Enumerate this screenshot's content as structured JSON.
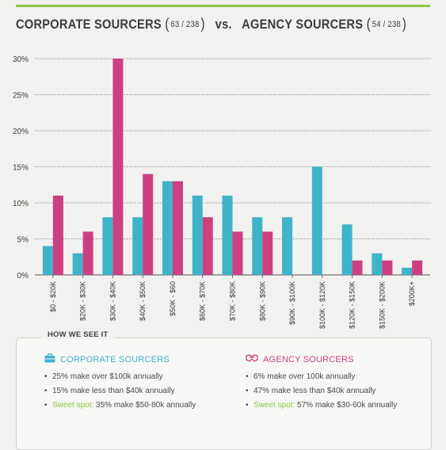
{
  "header": {
    "corp_label": "CORPORATE SOURCERS",
    "corp_count": "63 / 238",
    "vs": "vs.",
    "agency_label": "AGENCY SOURCERS",
    "agency_count": "54 / 238"
  },
  "colors": {
    "corporate": "#3fb3c8",
    "agency": "#cc4082",
    "accent": "#8cc63f",
    "grid": "#8a8a8a"
  },
  "chart_data": {
    "type": "bar",
    "categories": [
      "$0 - $20K",
      "$20K - $30K",
      "$30K - $40K",
      "$40K - $50K",
      "$50K - $60",
      "$60K - $70K",
      "$70K - $80K",
      "$80K - $90K",
      "$90K - $100K",
      "$100K - $120K",
      "$120K - $150K",
      "$150K - $200K",
      "$200K+"
    ],
    "series": [
      {
        "name": "CORPORATE SOURCERS",
        "values": [
          4,
          3,
          8,
          8,
          13,
          11,
          11,
          8,
          8,
          15,
          7,
          3,
          1
        ]
      },
      {
        "name": "AGENCY SOURCERS",
        "values": [
          11,
          6,
          30,
          14,
          13,
          8,
          6,
          6,
          0,
          0,
          2,
          2,
          2
        ]
      }
    ],
    "yticks": [
      "0%",
      "5%",
      "10%",
      "15%",
      "20%",
      "25%",
      "30%"
    ],
    "ylim": [
      0,
      30
    ],
    "grid": true
  },
  "panel": {
    "title": "HOW WE SEE IT",
    "corporate": {
      "heading": "CORPORATE SOURCERS",
      "icon": "briefcase-icon",
      "bullets": [
        {
          "text": "25% make over $100k annually"
        },
        {
          "text": "15% make less than $40k annually"
        },
        {
          "prefix": "Sweet spot:",
          "text": " 35% make $50-80k annually"
        }
      ]
    },
    "agency": {
      "heading": "AGENCY SOURCERS",
      "icon": "handshake-icon",
      "bullets": [
        {
          "text": "6% make over 100k annually"
        },
        {
          "text": "47% make less than $40k annually"
        },
        {
          "prefix": "Sweet spot:",
          "text": " 57% make $30-60k annually"
        }
      ]
    }
  }
}
